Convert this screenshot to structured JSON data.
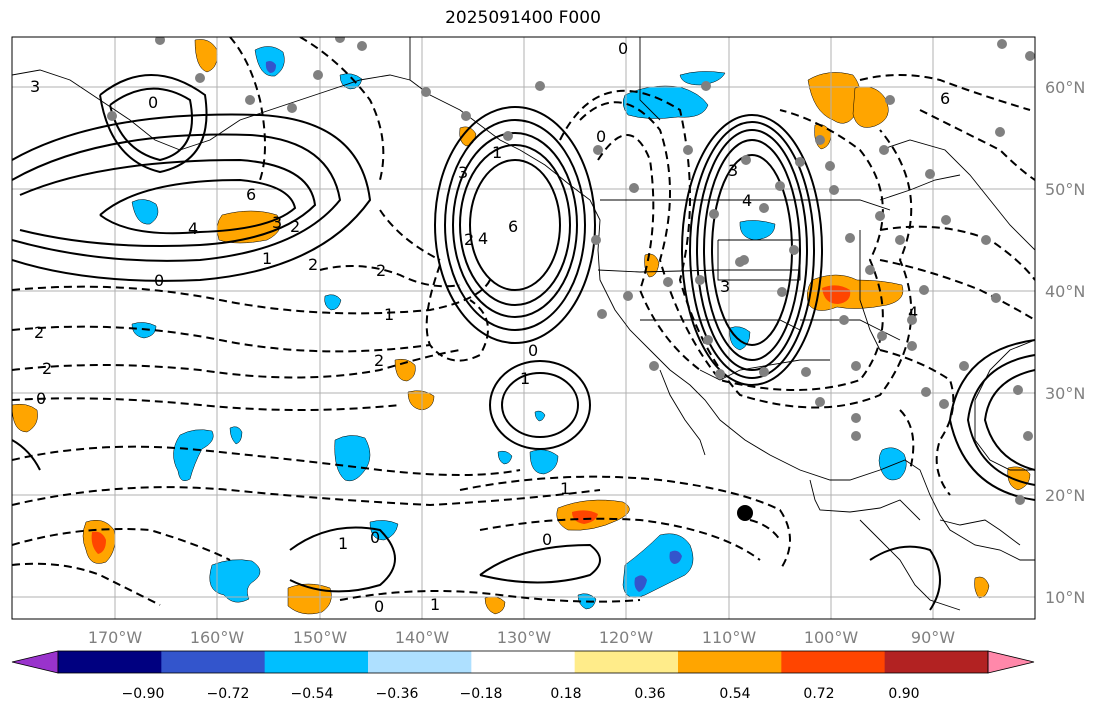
{
  "title": "2025091400 F000",
  "lon_labels": [
    "170°W",
    "160°W",
    "150°W",
    "140°W",
    "130°W",
    "120°W",
    "110°W",
    "100°W",
    "90°W"
  ],
  "lat_labels": [
    "60°N",
    "50°N",
    "40°N",
    "30°N",
    "20°N",
    "10°N"
  ],
  "colorbar": {
    "colors": [
      "#9933cc",
      "#000080",
      "#3355cc",
      "#00bfff",
      "#aee0ff",
      "#ffffff",
      "#ffec8a",
      "#ffa500",
      "#ff4500",
      "#b22222",
      "#ff88aa"
    ],
    "tick_labels": [
      "−0.90",
      "−0.72",
      "−0.54",
      "−0.36",
      "−0.18",
      "0.18",
      "0.36",
      "0.54",
      "0.72",
      "0.90"
    ]
  },
  "contour_labels": [
    "3",
    "0",
    "6",
    "4",
    "3",
    "2",
    "1",
    "2",
    "2",
    "2",
    "0",
    "1",
    "2",
    "2",
    "0",
    "1",
    "0",
    "1",
    "0",
    "0",
    "1",
    "2",
    "3",
    "4",
    "6",
    "1",
    "0",
    "3",
    "4",
    "3",
    "6",
    "0",
    "4",
    "0",
    "1"
  ],
  "marker_icon": "filled-circle"
}
